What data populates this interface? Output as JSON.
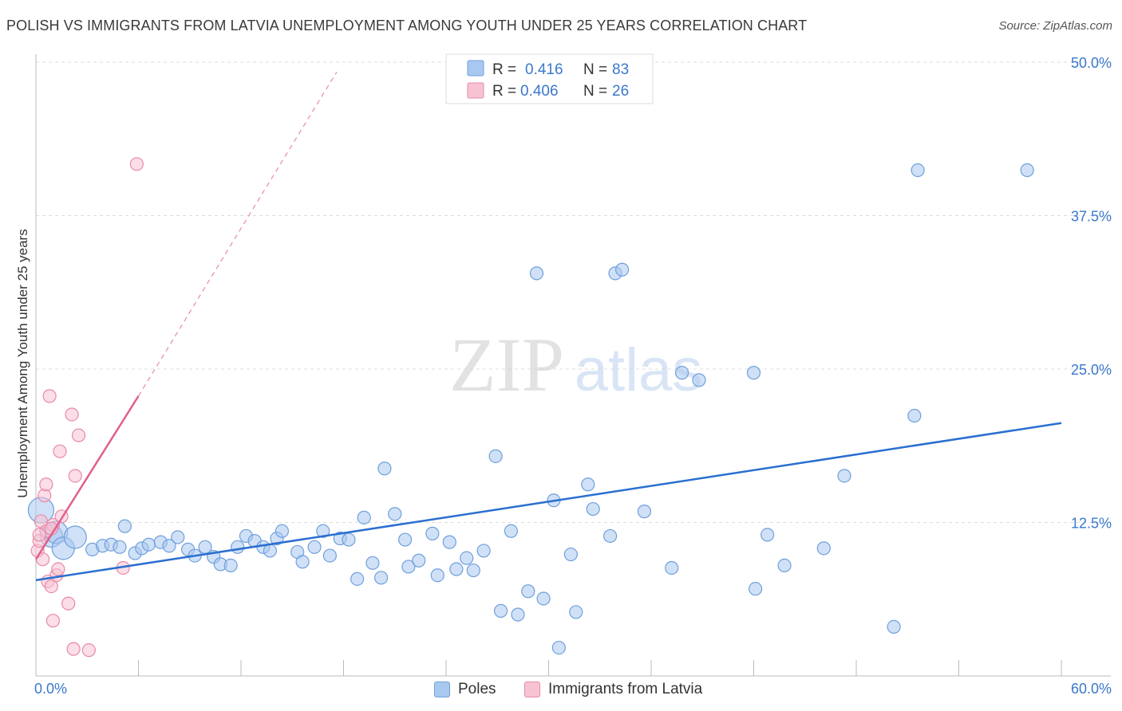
{
  "title": "POLISH VS IMMIGRANTS FROM LATVIA UNEMPLOYMENT AMONG YOUTH UNDER 25 YEARS CORRELATION CHART",
  "source": "Source: ZipAtlas.com",
  "watermark": {
    "zip": "ZIP",
    "atlas": "atlas"
  },
  "colors": {
    "blue_fill": "#a9c8f0",
    "blue_stroke": "#6f9fdc",
    "blue_line": "#2a6fd0",
    "blue_text": "#3a78cc",
    "pink_fill": "#f7c3d3",
    "pink_stroke": "#e88aa8",
    "pink_line": "#e0608d",
    "grid": "#dddddd",
    "axis": "#bbbbbb"
  },
  "legend_stats": [
    {
      "series": "Poles",
      "r_label": "R =",
      "r_value": "0.416",
      "n_label": "N =",
      "n_value": "83"
    },
    {
      "series": "Immigrants from Latvia",
      "r_label": "R =",
      "r_value": "0.406",
      "n_label": "N =",
      "n_value": "26"
    }
  ],
  "chart_data": {
    "type": "scatter",
    "title": "POLISH VS IMMIGRANTS FROM LATVIA UNEMPLOYMENT AMONG YOUTH UNDER 25 YEARS CORRELATION CHART",
    "ylabel": "Unemployment Among Youth under 25 years",
    "xlabel": "",
    "xlim": [
      0,
      60
    ],
    "ylim": [
      0,
      50
    ],
    "x_tick_labels": [
      "0.0%",
      "60.0%"
    ],
    "y_ticks": [
      12.5,
      25.0,
      37.5,
      50.0
    ],
    "y_tick_labels": [
      "12.5%",
      "25.0%",
      "37.5%",
      "50.0%"
    ],
    "legend_position": "bottom-center",
    "series": [
      {
        "name": "Poles",
        "trend": {
          "x": [
            0,
            60
          ],
          "y": [
            7.8,
            20.6
          ]
        },
        "points": [
          {
            "x": 0.3,
            "y": 13.5,
            "s": 3
          },
          {
            "x": 0.9,
            "y": 11.4,
            "s": 2
          },
          {
            "x": 1.2,
            "y": 11.7,
            "s": 2
          },
          {
            "x": 1.6,
            "y": 10.4,
            "s": 2
          },
          {
            "x": 2.3,
            "y": 11.3,
            "s": 2
          },
          {
            "x": 3.3,
            "y": 10.3,
            "s": 1
          },
          {
            "x": 3.9,
            "y": 10.6,
            "s": 1
          },
          {
            "x": 4.4,
            "y": 10.7,
            "s": 1
          },
          {
            "x": 4.9,
            "y": 10.5,
            "s": 1
          },
          {
            "x": 5.2,
            "y": 12.2,
            "s": 1
          },
          {
            "x": 5.8,
            "y": 10.0,
            "s": 1
          },
          {
            "x": 6.2,
            "y": 10.4,
            "s": 1
          },
          {
            "x": 6.6,
            "y": 10.7,
            "s": 1
          },
          {
            "x": 7.3,
            "y": 10.9,
            "s": 1
          },
          {
            "x": 7.8,
            "y": 10.6,
            "s": 1
          },
          {
            "x": 8.3,
            "y": 11.3,
            "s": 1
          },
          {
            "x": 8.9,
            "y": 10.3,
            "s": 1
          },
          {
            "x": 9.3,
            "y": 9.8,
            "s": 1
          },
          {
            "x": 9.9,
            "y": 10.5,
            "s": 1
          },
          {
            "x": 10.4,
            "y": 9.7,
            "s": 1
          },
          {
            "x": 10.8,
            "y": 9.1,
            "s": 1
          },
          {
            "x": 11.4,
            "y": 9.0,
            "s": 1
          },
          {
            "x": 11.8,
            "y": 10.5,
            "s": 1
          },
          {
            "x": 12.3,
            "y": 11.4,
            "s": 1
          },
          {
            "x": 12.8,
            "y": 11.0,
            "s": 1
          },
          {
            "x": 13.3,
            "y": 10.5,
            "s": 1
          },
          {
            "x": 13.7,
            "y": 10.2,
            "s": 1
          },
          {
            "x": 14.1,
            "y": 11.2,
            "s": 1
          },
          {
            "x": 14.4,
            "y": 11.8,
            "s": 1
          },
          {
            "x": 15.3,
            "y": 10.1,
            "s": 1
          },
          {
            "x": 15.6,
            "y": 9.3,
            "s": 1
          },
          {
            "x": 16.3,
            "y": 10.5,
            "s": 1
          },
          {
            "x": 16.8,
            "y": 11.8,
            "s": 1
          },
          {
            "x": 17.2,
            "y": 9.8,
            "s": 1
          },
          {
            "x": 17.8,
            "y": 11.2,
            "s": 1
          },
          {
            "x": 18.3,
            "y": 11.1,
            "s": 1
          },
          {
            "x": 18.8,
            "y": 7.9,
            "s": 1
          },
          {
            "x": 19.2,
            "y": 12.9,
            "s": 1
          },
          {
            "x": 19.7,
            "y": 9.2,
            "s": 1
          },
          {
            "x": 20.2,
            "y": 8.0,
            "s": 1
          },
          {
            "x": 20.4,
            "y": 16.9,
            "s": 1
          },
          {
            "x": 21.0,
            "y": 13.2,
            "s": 1
          },
          {
            "x": 21.6,
            "y": 11.1,
            "s": 1
          },
          {
            "x": 21.8,
            "y": 8.9,
            "s": 1
          },
          {
            "x": 22.4,
            "y": 9.4,
            "s": 1
          },
          {
            "x": 23.2,
            "y": 11.6,
            "s": 1
          },
          {
            "x": 23.5,
            "y": 8.2,
            "s": 1
          },
          {
            "x": 24.2,
            "y": 10.9,
            "s": 1
          },
          {
            "x": 24.6,
            "y": 8.7,
            "s": 1
          },
          {
            "x": 25.2,
            "y": 9.6,
            "s": 1
          },
          {
            "x": 25.6,
            "y": 8.6,
            "s": 1
          },
          {
            "x": 26.2,
            "y": 10.2,
            "s": 1
          },
          {
            "x": 26.9,
            "y": 17.9,
            "s": 1
          },
          {
            "x": 27.2,
            "y": 5.3,
            "s": 1
          },
          {
            "x": 27.8,
            "y": 11.8,
            "s": 1
          },
          {
            "x": 28.2,
            "y": 5.0,
            "s": 1
          },
          {
            "x": 28.8,
            "y": 6.9,
            "s": 1
          },
          {
            "x": 29.3,
            "y": 32.8,
            "s": 1
          },
          {
            "x": 29.7,
            "y": 6.3,
            "s": 1
          },
          {
            "x": 30.3,
            "y": 14.3,
            "s": 1
          },
          {
            "x": 30.6,
            "y": 2.3,
            "s": 1
          },
          {
            "x": 31.3,
            "y": 9.9,
            "s": 1
          },
          {
            "x": 31.6,
            "y": 5.2,
            "s": 1
          },
          {
            "x": 32.3,
            "y": 15.6,
            "s": 1
          },
          {
            "x": 32.6,
            "y": 13.6,
            "s": 1
          },
          {
            "x": 33.6,
            "y": 11.4,
            "s": 1
          },
          {
            "x": 33.9,
            "y": 32.8,
            "s": 1
          },
          {
            "x": 34.3,
            "y": 33.1,
            "s": 1
          },
          {
            "x": 35.6,
            "y": 13.4,
            "s": 1
          },
          {
            "x": 37.2,
            "y": 8.8,
            "s": 1
          },
          {
            "x": 37.8,
            "y": 24.7,
            "s": 1
          },
          {
            "x": 38.8,
            "y": 24.1,
            "s": 1
          },
          {
            "x": 42.1,
            "y": 7.1,
            "s": 1
          },
          {
            "x": 42.0,
            "y": 24.7,
            "s": 1
          },
          {
            "x": 42.8,
            "y": 11.5,
            "s": 1
          },
          {
            "x": 43.8,
            "y": 9.0,
            "s": 1
          },
          {
            "x": 46.1,
            "y": 10.4,
            "s": 1
          },
          {
            "x": 47.3,
            "y": 16.3,
            "s": 1
          },
          {
            "x": 50.2,
            "y": 4.0,
            "s": 1
          },
          {
            "x": 51.4,
            "y": 21.2,
            "s": 1
          },
          {
            "x": 51.6,
            "y": 41.2,
            "s": 1
          },
          {
            "x": 58.0,
            "y": 41.2,
            "s": 1
          }
        ]
      },
      {
        "name": "Immigrants from Latvia",
        "trend": {
          "x": [
            0,
            6.0
          ],
          "y": [
            9.5,
            22.8
          ]
        },
        "trend_extension": {
          "x": [
            6.0,
            17.6
          ],
          "y": [
            22.8,
            49.2
          ]
        },
        "points": [
          {
            "x": 0.1,
            "y": 10.2
          },
          {
            "x": 0.2,
            "y": 11.0
          },
          {
            "x": 0.3,
            "y": 12.6
          },
          {
            "x": 0.4,
            "y": 9.5
          },
          {
            "x": 0.5,
            "y": 14.7
          },
          {
            "x": 0.6,
            "y": 15.6
          },
          {
            "x": 0.6,
            "y": 11.8
          },
          {
            "x": 0.7,
            "y": 7.7
          },
          {
            "x": 0.8,
            "y": 22.8
          },
          {
            "x": 0.9,
            "y": 7.3
          },
          {
            "x": 1.0,
            "y": 4.5
          },
          {
            "x": 1.0,
            "y": 12.3
          },
          {
            "x": 1.2,
            "y": 8.2
          },
          {
            "x": 1.3,
            "y": 8.7
          },
          {
            "x": 1.4,
            "y": 18.3
          },
          {
            "x": 1.5,
            "y": 13.0
          },
          {
            "x": 1.9,
            "y": 5.9
          },
          {
            "x": 2.1,
            "y": 21.3
          },
          {
            "x": 2.2,
            "y": 2.2
          },
          {
            "x": 2.3,
            "y": 16.3
          },
          {
            "x": 2.5,
            "y": 19.6
          },
          {
            "x": 3.1,
            "y": 2.1
          },
          {
            "x": 5.1,
            "y": 8.8
          },
          {
            "x": 5.9,
            "y": 41.7
          },
          {
            "x": 0.2,
            "y": 11.5
          },
          {
            "x": 0.9,
            "y": 12.0
          }
        ]
      }
    ]
  }
}
